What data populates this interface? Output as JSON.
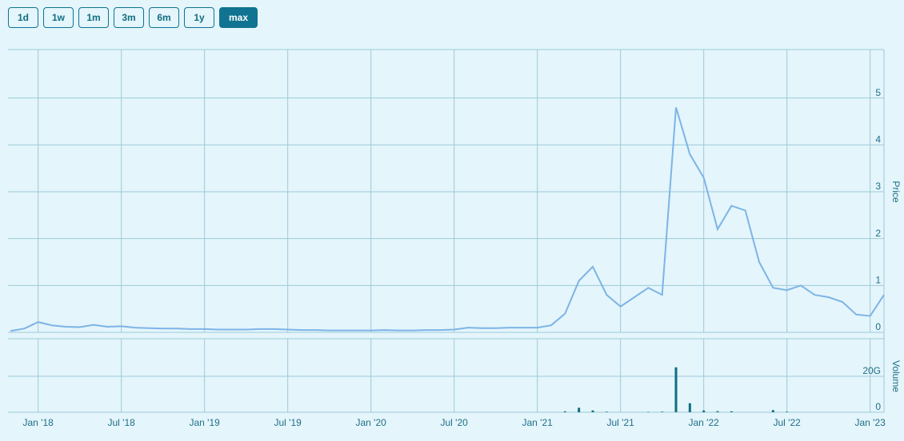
{
  "range_buttons": {
    "labels": [
      "1d",
      "1w",
      "1m",
      "3m",
      "6m",
      "1y",
      "max"
    ],
    "active_index": 6
  },
  "chart_data": [
    {
      "type": "line",
      "ylabel": "Price",
      "color": "#7db4e6",
      "x": [
        "2017-11",
        "2017-12",
        "2018-01",
        "2018-02",
        "2018-03",
        "2018-04",
        "2018-05",
        "2018-06",
        "2018-07",
        "2018-08",
        "2018-09",
        "2018-10",
        "2018-11",
        "2018-12",
        "2019-01",
        "2019-02",
        "2019-03",
        "2019-04",
        "2019-05",
        "2019-06",
        "2019-07",
        "2019-08",
        "2019-09",
        "2019-10",
        "2019-11",
        "2019-12",
        "2020-01",
        "2020-02",
        "2020-03",
        "2020-04",
        "2020-05",
        "2020-06",
        "2020-07",
        "2020-08",
        "2020-09",
        "2020-10",
        "2020-11",
        "2020-12",
        "2021-01",
        "2021-02",
        "2021-03",
        "2021-04",
        "2021-05",
        "2021-06",
        "2021-07",
        "2021-08",
        "2021-09",
        "2021-10",
        "2021-11",
        "2021-12",
        "2022-01",
        "2022-02",
        "2022-03",
        "2022-04",
        "2022-05",
        "2022-06",
        "2022-07",
        "2022-08",
        "2022-09",
        "2022-10",
        "2022-11",
        "2022-12",
        "2023-01",
        "2023-02"
      ],
      "values": [
        0.03,
        0.08,
        0.22,
        0.15,
        0.12,
        0.11,
        0.16,
        0.12,
        0.13,
        0.1,
        0.09,
        0.08,
        0.08,
        0.07,
        0.07,
        0.06,
        0.06,
        0.06,
        0.07,
        0.07,
        0.06,
        0.05,
        0.05,
        0.04,
        0.04,
        0.04,
        0.04,
        0.05,
        0.04,
        0.04,
        0.05,
        0.05,
        0.06,
        0.1,
        0.09,
        0.09,
        0.1,
        0.1,
        0.1,
        0.15,
        0.4,
        1.1,
        1.4,
        0.8,
        0.55,
        0.75,
        0.95,
        0.8,
        4.8,
        3.8,
        3.3,
        2.2,
        2.7,
        2.6,
        1.5,
        0.95,
        0.9,
        1.0,
        0.8,
        0.75,
        0.65,
        0.38,
        0.35,
        0.8
      ],
      "xlim": [
        "2017-11",
        "2023-02"
      ],
      "ylim": [
        0,
        6
      ],
      "yticks": [
        0,
        1,
        2,
        3,
        4,
        5
      ],
      "grid": true
    },
    {
      "type": "bar",
      "ylabel": "Volume",
      "color": "#0f6e80",
      "x": [
        "2021-03",
        "2021-04",
        "2021-05",
        "2021-06",
        "2021-09",
        "2021-10",
        "2021-11",
        "2021-12",
        "2022-01",
        "2022-02",
        "2022-03",
        "2022-06",
        "2022-07"
      ],
      "values": [
        500000000,
        2500000000,
        1000000000,
        300000000,
        200000000,
        300000000,
        25000000000,
        5000000000,
        1000000000,
        600000000,
        500000000,
        1200000000,
        300000000
      ],
      "xlim": [
        "2017-11",
        "2023-02"
      ],
      "ylim": [
        0,
        40000000000
      ],
      "yticks": [
        0,
        {
          "value": 20000000000,
          "label": "20G"
        }
      ],
      "xticks": [
        {
          "value": "2018-01",
          "label": "Jan '18"
        },
        {
          "value": "2018-07",
          "label": "Jul '18"
        },
        {
          "value": "2019-01",
          "label": "Jan '19"
        },
        {
          "value": "2019-07",
          "label": "Jul '19"
        },
        {
          "value": "2020-01",
          "label": "Jan '20"
        },
        {
          "value": "2020-07",
          "label": "Jul '20"
        },
        {
          "value": "2021-01",
          "label": "Jan '21"
        },
        {
          "value": "2021-07",
          "label": "Jul '21"
        },
        {
          "value": "2022-01",
          "label": "Jan '22"
        },
        {
          "value": "2022-07",
          "label": "Jul '22"
        },
        {
          "value": "2023-01",
          "label": "Jan '23"
        }
      ],
      "grid": true
    }
  ]
}
